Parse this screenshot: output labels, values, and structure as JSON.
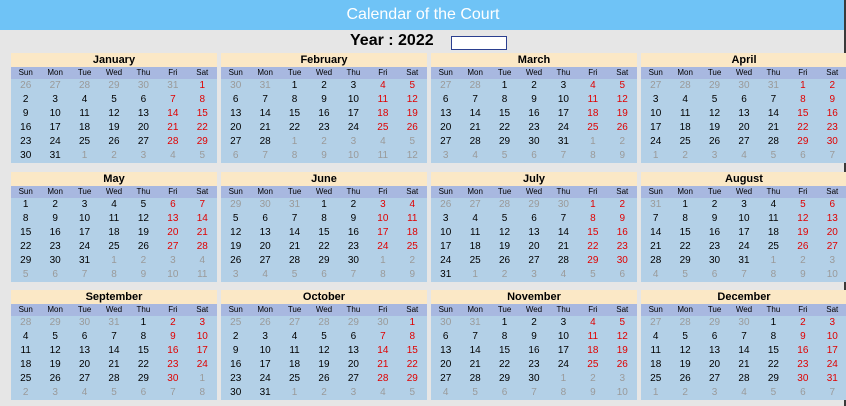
{
  "header": {
    "title": "Calendar of the Court"
  },
  "year": {
    "label": "Year : 2022",
    "input_value": ""
  },
  "weekdays": [
    "Sun",
    "Mon",
    "Tue",
    "Wed",
    "Thu",
    "Fri",
    "Sat"
  ],
  "colors": {
    "header_bg": "#6fc3f6",
    "month_title_bg": "#fbe8c6",
    "weekday_bg": "#a8b8e0",
    "grid_bg": "#b3d0e7",
    "weekend": "#e00000",
    "other_month": "#9a9a9a"
  },
  "months": [
    {
      "name": "January",
      "rows": [
        [
          26,
          27,
          28,
          29,
          30,
          31,
          1
        ],
        [
          2,
          3,
          4,
          5,
          6,
          7,
          8
        ],
        [
          9,
          10,
          11,
          12,
          13,
          14,
          15
        ],
        [
          16,
          17,
          18,
          19,
          20,
          21,
          22
        ],
        [
          23,
          24,
          25,
          26,
          27,
          28,
          29
        ],
        [
          30,
          31,
          1,
          2,
          3,
          4,
          5
        ]
      ]
    },
    {
      "name": "February",
      "rows": [
        [
          30,
          31,
          1,
          2,
          3,
          4,
          5
        ],
        [
          6,
          7,
          8,
          9,
          10,
          11,
          12
        ],
        [
          13,
          14,
          15,
          16,
          17,
          18,
          19
        ],
        [
          20,
          21,
          22,
          23,
          24,
          25,
          26
        ],
        [
          27,
          28,
          1,
          2,
          3,
          4,
          5
        ],
        [
          6,
          7,
          8,
          9,
          10,
          11,
          12
        ]
      ]
    },
    {
      "name": "March",
      "rows": [
        [
          27,
          28,
          1,
          2,
          3,
          4,
          5
        ],
        [
          6,
          7,
          8,
          9,
          10,
          11,
          12
        ],
        [
          13,
          14,
          15,
          16,
          17,
          18,
          19
        ],
        [
          20,
          21,
          22,
          23,
          24,
          25,
          26
        ],
        [
          27,
          28,
          29,
          30,
          31,
          1,
          2
        ],
        [
          3,
          4,
          5,
          6,
          7,
          8,
          9
        ]
      ]
    },
    {
      "name": "April",
      "rows": [
        [
          27,
          28,
          29,
          30,
          31,
          1,
          2
        ],
        [
          3,
          4,
          5,
          6,
          7,
          8,
          9
        ],
        [
          10,
          11,
          12,
          13,
          14,
          15,
          16
        ],
        [
          17,
          18,
          19,
          20,
          21,
          22,
          23
        ],
        [
          24,
          25,
          26,
          27,
          28,
          29,
          30
        ],
        [
          1,
          2,
          3,
          4,
          5,
          6,
          7
        ]
      ]
    },
    {
      "name": "May",
      "rows": [
        [
          1,
          2,
          3,
          4,
          5,
          6,
          7
        ],
        [
          8,
          9,
          10,
          11,
          12,
          13,
          14
        ],
        [
          15,
          16,
          17,
          18,
          19,
          20,
          21
        ],
        [
          22,
          23,
          24,
          25,
          26,
          27,
          28
        ],
        [
          29,
          30,
          31,
          1,
          2,
          3,
          4
        ],
        [
          5,
          6,
          7,
          8,
          9,
          10,
          11
        ]
      ]
    },
    {
      "name": "June",
      "rows": [
        [
          29,
          30,
          31,
          1,
          2,
          3,
          4
        ],
        [
          5,
          6,
          7,
          8,
          9,
          10,
          11
        ],
        [
          12,
          13,
          14,
          15,
          16,
          17,
          18
        ],
        [
          19,
          20,
          21,
          22,
          23,
          24,
          25
        ],
        [
          26,
          27,
          28,
          29,
          30,
          1,
          2
        ],
        [
          3,
          4,
          5,
          6,
          7,
          8,
          9
        ]
      ]
    },
    {
      "name": "July",
      "rows": [
        [
          26,
          27,
          28,
          29,
          30,
          1,
          2
        ],
        [
          3,
          4,
          5,
          6,
          7,
          8,
          9
        ],
        [
          10,
          11,
          12,
          13,
          14,
          15,
          16
        ],
        [
          17,
          18,
          19,
          20,
          21,
          22,
          23
        ],
        [
          24,
          25,
          26,
          27,
          28,
          29,
          30
        ],
        [
          31,
          1,
          2,
          3,
          4,
          5,
          6
        ]
      ]
    },
    {
      "name": "August",
      "rows": [
        [
          31,
          1,
          2,
          3,
          4,
          5,
          6
        ],
        [
          7,
          8,
          9,
          10,
          11,
          12,
          13
        ],
        [
          14,
          15,
          16,
          17,
          18,
          19,
          20
        ],
        [
          21,
          22,
          23,
          24,
          25,
          26,
          27
        ],
        [
          28,
          29,
          30,
          31,
          1,
          2,
          3
        ],
        [
          4,
          5,
          6,
          7,
          8,
          9,
          10
        ]
      ]
    },
    {
      "name": "September",
      "rows": [
        [
          28,
          29,
          30,
          31,
          1,
          2,
          3
        ],
        [
          4,
          5,
          6,
          7,
          8,
          9,
          10
        ],
        [
          11,
          12,
          13,
          14,
          15,
          16,
          17
        ],
        [
          18,
          19,
          20,
          21,
          22,
          23,
          24
        ],
        [
          25,
          26,
          27,
          28,
          29,
          30,
          1
        ],
        [
          2,
          3,
          4,
          5,
          6,
          7,
          8
        ]
      ]
    },
    {
      "name": "October",
      "rows": [
        [
          25,
          26,
          27,
          28,
          29,
          30,
          1
        ],
        [
          2,
          3,
          4,
          5,
          6,
          7,
          8
        ],
        [
          9,
          10,
          11,
          12,
          13,
          14,
          15
        ],
        [
          16,
          17,
          18,
          19,
          20,
          21,
          22
        ],
        [
          23,
          24,
          25,
          26,
          27,
          28,
          29
        ],
        [
          30,
          31,
          1,
          2,
          3,
          4,
          5
        ]
      ]
    },
    {
      "name": "November",
      "rows": [
        [
          30,
          31,
          1,
          2,
          3,
          4,
          5
        ],
        [
          6,
          7,
          8,
          9,
          10,
          11,
          12
        ],
        [
          13,
          14,
          15,
          16,
          17,
          18,
          19
        ],
        [
          20,
          21,
          22,
          23,
          24,
          25,
          26
        ],
        [
          27,
          28,
          29,
          30,
          1,
          2,
          3
        ],
        [
          4,
          5,
          6,
          7,
          8,
          9,
          10
        ]
      ]
    },
    {
      "name": "December",
      "rows": [
        [
          27,
          28,
          29,
          30,
          1,
          2,
          3
        ],
        [
          4,
          5,
          6,
          7,
          8,
          9,
          10
        ],
        [
          11,
          12,
          13,
          14,
          15,
          16,
          17
        ],
        [
          18,
          19,
          20,
          21,
          22,
          23,
          24
        ],
        [
          25,
          26,
          27,
          28,
          29,
          30,
          31
        ],
        [
          1,
          2,
          3,
          4,
          5,
          6,
          7
        ]
      ]
    }
  ]
}
